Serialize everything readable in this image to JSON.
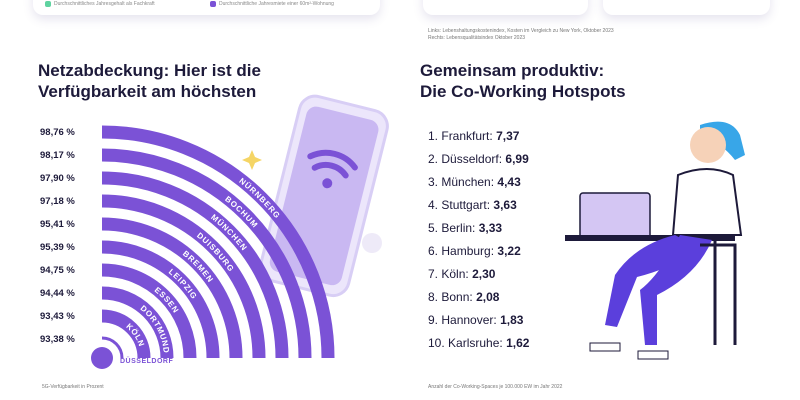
{
  "top_legend": [
    {
      "label": "Durchschnittliches Jahresgehalt als Fachkraft",
      "color": "#5fd3a0"
    },
    {
      "label": "Durchschnittliche Jahresmiete einer 60m²-Wohnung",
      "color": "#7b52d6"
    }
  ],
  "top_source": {
    "line1": "Links: Lebenshaltungskostenindex, Kosten im Vergleich zu New York, Oktober 2023",
    "line2": "Rechts: Lebensqualitätsindex Oktober 2023"
  },
  "left": {
    "title_line1": "Netzabdeckung: Hier ist die",
    "title_line2": "Verfügbarkeit am höchsten",
    "footnote": "5G-Verfügbarkeit in Prozent",
    "center_city": "DÜSSELDORF"
  },
  "right": {
    "title_line1": "Gemeinsam produktiv:",
    "title_line2": "Die Co-Working Hotspots",
    "footnote": "Anzahl der Co-Working-Spaces je 100.000 EW im Jahr 2022"
  },
  "chart_data": [
    {
      "type": "bar",
      "subtype": "radial",
      "color": "#7b52d6",
      "categories": [
        "Nürnberg",
        "Bochum",
        "München",
        "Duisburg",
        "Bremen",
        "Leipzig",
        "Essen",
        "Dortmund",
        "Köln",
        "Düsseldorf"
      ],
      "labels": [
        "NÜRNBERG",
        "BOCHUM",
        "MÜNCHEN",
        "DUISBURG",
        "BREMEN",
        "LEIPZIG",
        "ESSEN",
        "DORTMUND",
        "KÖLN",
        "DÜSSELDORF"
      ],
      "values": [
        98.76,
        98.17,
        97.9,
        97.18,
        95.41,
        95.39,
        94.75,
        94.44,
        93.43,
        93.38
      ],
      "value_labels": [
        "98,76 %",
        "98,17 %",
        "97,90 %",
        "97,18 %",
        "95,41 %",
        "95,39 %",
        "94,75 %",
        "94,44 %",
        "93,43 %",
        "93,38 %"
      ]
    },
    {
      "type": "table",
      "items": [
        {
          "rank": "1.",
          "city": "Frankfurt:",
          "value": "7,37"
        },
        {
          "rank": "2.",
          "city": "Düsseldorf:",
          "value": "6,99"
        },
        {
          "rank": "3.",
          "city": "München:",
          "value": "4,43"
        },
        {
          "rank": "4.",
          "city": "Stuttgart:",
          "value": "3,63"
        },
        {
          "rank": "5.",
          "city": "Berlin:",
          "value": "3,33"
        },
        {
          "rank": "6.",
          "city": "Hamburg:",
          "value": "3,22"
        },
        {
          "rank": "7.",
          "city": "Köln:",
          "value": "2,30"
        },
        {
          "rank": "8.",
          "city": "Bonn:",
          "value": "2,08"
        },
        {
          "rank": "9.",
          "city": "Hannover:",
          "value": "1,83"
        },
        {
          "rank": "10.",
          "city": "Karlsruhe:",
          "value": "1,62"
        }
      ]
    }
  ]
}
